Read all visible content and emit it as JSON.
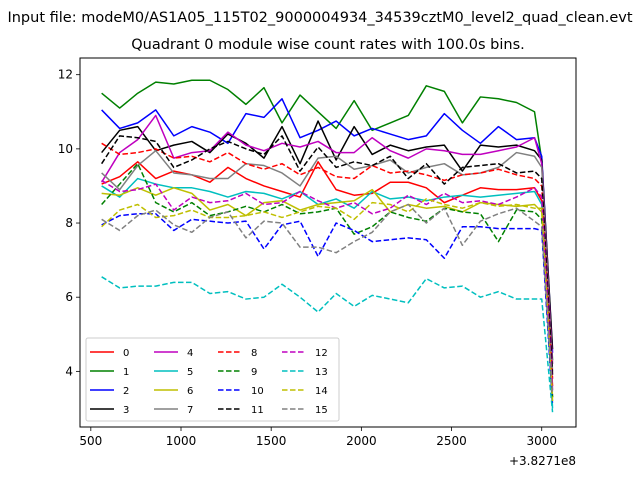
{
  "figure": {
    "suptitle": "Input file: modeM0/AS1A05_115T02_9000004934_34539cztM0_level2_quad_clean.evt",
    "title": "Quadrant 0 module wise count rates with 100.0s bins."
  },
  "chart_data": {
    "type": "line",
    "title": "Quadrant 0 module wise count rates with 100.0s bins.",
    "xlabel": "",
    "ylabel": "",
    "x_offset_label": "+3.8271e8",
    "xlim": [
      440,
      3190
    ],
    "ylim": [
      2.5,
      12.45
    ],
    "x_ticks": [
      500,
      1000,
      1500,
      2000,
      2500,
      3000
    ],
    "x_tick_labels": [
      "500",
      "1000",
      "1500",
      "2000",
      "2500",
      "3000"
    ],
    "y_ticks": [
      4,
      6,
      8,
      10,
      12
    ],
    "y_tick_labels": [
      "4",
      "6",
      "8",
      "10",
      "12"
    ],
    "grid": false,
    "legend_position": "lower-left",
    "legend_columns": 4,
    "x": [
      560,
      660,
      760,
      860,
      960,
      1060,
      1160,
      1260,
      1360,
      1460,
      1560,
      1660,
      1760,
      1860,
      1960,
      2060,
      2160,
      2260,
      2360,
      2460,
      2560,
      2660,
      2760,
      2860,
      2960,
      3000,
      3060
    ],
    "series": [
      {
        "name": "0",
        "color": "#ff0000",
        "dash": "solid",
        "values": [
          9.05,
          9.25,
          9.65,
          9.2,
          9.4,
          9.3,
          9.1,
          9.5,
          9.2,
          9.0,
          8.85,
          8.7,
          9.65,
          8.9,
          8.75,
          8.8,
          9.1,
          9.1,
          8.95,
          8.55,
          8.75,
          8.95,
          8.9,
          8.9,
          8.95,
          8.6,
          3.6
        ]
      },
      {
        "name": "1",
        "color": "#008000",
        "dash": "solid",
        "values": [
          11.5,
          11.1,
          11.5,
          11.8,
          11.75,
          11.85,
          11.85,
          11.6,
          11.2,
          11.65,
          10.7,
          11.45,
          11.0,
          10.55,
          11.3,
          10.5,
          10.7,
          10.9,
          11.7,
          11.55,
          10.7,
          11.4,
          11.35,
          11.25,
          11.0,
          9.7,
          4.3
        ]
      },
      {
        "name": "2",
        "color": "#0000ff",
        "dash": "solid",
        "values": [
          11.05,
          10.55,
          10.7,
          11.05,
          10.35,
          10.6,
          10.45,
          10.15,
          10.95,
          10.85,
          11.35,
          10.3,
          10.5,
          10.75,
          10.35,
          10.55,
          10.4,
          10.25,
          10.35,
          10.95,
          10.5,
          10.15,
          10.6,
          10.25,
          10.3,
          9.8,
          4.5
        ]
      },
      {
        "name": "3",
        "color": "#000000",
        "dash": "solid",
        "values": [
          9.9,
          10.5,
          10.6,
          9.95,
          10.1,
          10.2,
          9.9,
          10.4,
          10.15,
          9.75,
          10.6,
          9.6,
          10.75,
          9.7,
          10.6,
          9.85,
          10.1,
          9.95,
          10.05,
          10.1,
          9.4,
          10.1,
          10.05,
          10.1,
          9.95,
          9.7,
          4.6
        ]
      },
      {
        "name": "4",
        "color": "#bf00bf",
        "dash": "solid",
        "values": [
          9.1,
          9.9,
          10.25,
          10.9,
          9.75,
          9.9,
          9.95,
          10.45,
          10.1,
          9.95,
          10.15,
          10.05,
          10.2,
          9.9,
          9.9,
          10.3,
          9.95,
          9.75,
          10.0,
          9.95,
          9.85,
          9.85,
          9.95,
          10.05,
          10.3,
          9.6,
          4.2
        ]
      },
      {
        "name": "5",
        "color": "#00bfbf",
        "dash": "solid",
        "values": [
          9.0,
          8.7,
          9.2,
          9.05,
          8.95,
          8.95,
          8.85,
          8.7,
          8.85,
          8.8,
          8.65,
          8.85,
          8.5,
          8.65,
          8.4,
          8.85,
          8.65,
          8.7,
          8.6,
          8.7,
          8.75,
          8.7,
          8.75,
          8.8,
          8.85,
          8.5,
          3.0
        ]
      },
      {
        "name": "6",
        "color": "#bfbf00",
        "dash": "solid",
        "values": [
          8.8,
          8.75,
          8.95,
          8.75,
          8.95,
          8.8,
          8.35,
          8.5,
          8.2,
          8.55,
          8.6,
          8.35,
          8.5,
          8.55,
          8.6,
          8.9,
          8.3,
          8.5,
          8.4,
          8.45,
          8.3,
          8.55,
          8.5,
          8.45,
          8.5,
          8.3,
          3.3
        ]
      },
      {
        "name": "7",
        "color": "#808080",
        "dash": "solid",
        "values": [
          9.35,
          8.9,
          9.55,
          9.95,
          9.35,
          9.3,
          9.2,
          9.2,
          9.6,
          9.55,
          9.35,
          9.0,
          9.75,
          9.8,
          9.45,
          9.55,
          9.7,
          9.35,
          9.5,
          9.6,
          9.3,
          9.35,
          9.5,
          9.9,
          9.8,
          9.5,
          4.0
        ]
      },
      {
        "name": "8",
        "color": "#ff0000",
        "dash": "dashed",
        "values": [
          10.15,
          9.85,
          9.9,
          10.0,
          9.75,
          9.8,
          9.65,
          9.9,
          9.6,
          9.45,
          9.6,
          9.3,
          9.5,
          9.25,
          9.2,
          9.55,
          9.35,
          9.4,
          9.3,
          9.15,
          9.3,
          9.35,
          9.45,
          9.3,
          9.2,
          9.0,
          3.8
        ]
      },
      {
        "name": "9",
        "color": "#008000",
        "dash": "dashed",
        "values": [
          8.5,
          9.05,
          9.6,
          8.55,
          8.3,
          8.55,
          8.2,
          8.3,
          8.45,
          8.3,
          8.5,
          8.25,
          8.3,
          8.4,
          7.7,
          7.9,
          8.3,
          8.15,
          8.05,
          8.4,
          8.3,
          8.25,
          7.5,
          8.35,
          8.3,
          8.1,
          3.3
        ]
      },
      {
        "name": "10",
        "color": "#0000ff",
        "dash": "dashed",
        "values": [
          7.95,
          8.2,
          8.25,
          8.25,
          7.8,
          8.1,
          8.05,
          8.0,
          8.05,
          7.3,
          7.95,
          8.05,
          7.1,
          8.0,
          7.8,
          7.5,
          7.55,
          7.6,
          7.55,
          7.05,
          7.9,
          7.9,
          7.85,
          7.85,
          7.85,
          7.8,
          3.1
        ]
      },
      {
        "name": "11",
        "color": "#000000",
        "dash": "dashed",
        "values": [
          9.6,
          10.35,
          10.3,
          10.2,
          9.5,
          9.7,
          10.0,
          10.2,
          10.0,
          9.85,
          10.35,
          9.4,
          10.05,
          9.5,
          9.65,
          9.55,
          9.8,
          9.2,
          9.6,
          9.05,
          9.5,
          9.55,
          9.6,
          9.35,
          9.4,
          9.2,
          3.9
        ]
      },
      {
        "name": "12",
        "color": "#bf00bf",
        "dash": "dashed",
        "values": [
          9.15,
          8.85,
          8.9,
          9.05,
          8.35,
          8.7,
          8.55,
          8.6,
          8.8,
          8.5,
          8.55,
          8.85,
          8.6,
          8.4,
          8.55,
          8.25,
          8.4,
          8.75,
          8.5,
          8.8,
          8.55,
          8.6,
          8.5,
          8.7,
          8.95,
          8.7,
          3.5
        ]
      },
      {
        "name": "13",
        "color": "#00bfbf",
        "dash": "dashed",
        "values": [
          6.55,
          6.25,
          6.3,
          6.3,
          6.4,
          6.4,
          6.1,
          6.15,
          5.95,
          6.0,
          6.35,
          6.0,
          5.6,
          6.1,
          5.75,
          6.05,
          5.95,
          5.85,
          6.5,
          6.25,
          6.3,
          6.0,
          6.15,
          5.95,
          5.95,
          5.95,
          2.9
        ]
      },
      {
        "name": "14",
        "color": "#bfbf00",
        "dash": "dashed",
        "values": [
          7.9,
          8.35,
          8.5,
          8.15,
          8.2,
          8.35,
          8.15,
          8.15,
          8.2,
          8.3,
          8.15,
          8.3,
          8.45,
          8.4,
          8.1,
          8.55,
          8.5,
          8.3,
          8.65,
          8.5,
          8.4,
          8.55,
          8.45,
          8.5,
          8.4,
          8.4,
          3.2
        ]
      },
      {
        "name": "15",
        "color": "#808080",
        "dash": "dashed",
        "values": [
          8.1,
          7.8,
          8.2,
          8.35,
          7.95,
          7.75,
          8.15,
          8.3,
          7.6,
          8.05,
          8.0,
          7.35,
          7.35,
          7.2,
          7.5,
          7.75,
          8.3,
          8.5,
          8.0,
          8.4,
          7.4,
          8.05,
          8.25,
          8.4,
          8.05,
          7.9,
          3.4
        ]
      }
    ]
  }
}
